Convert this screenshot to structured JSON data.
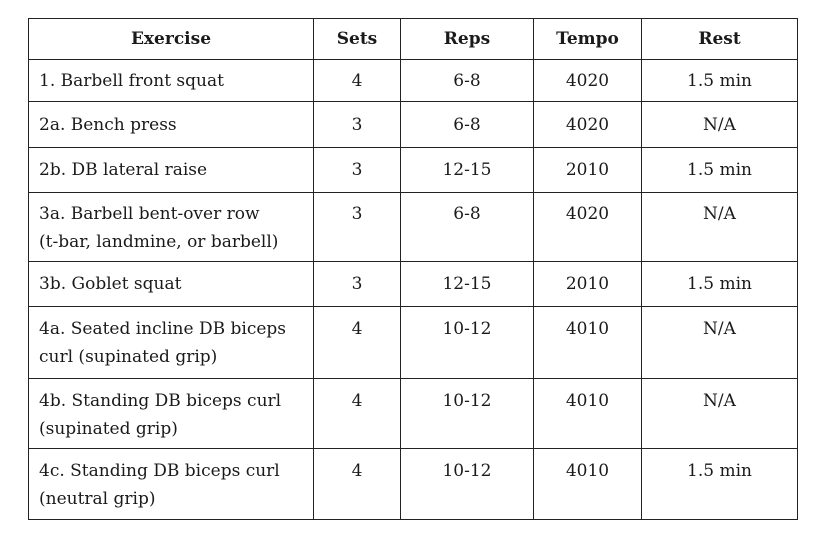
{
  "table": {
    "headers": [
      "Exercise",
      "Sets",
      "Reps",
      "Tempo",
      "Rest"
    ],
    "rows": [
      {
        "exercise": [
          "1. Barbell front squat"
        ],
        "sets": "4",
        "reps": "6-8",
        "tempo": "4020",
        "rest": "1.5 min"
      },
      {
        "exercise": [
          "2a. Bench press"
        ],
        "sets": "3",
        "reps": "6-8",
        "tempo": "4020",
        "rest": "N/A"
      },
      {
        "exercise": [
          "2b. DB lateral raise"
        ],
        "sets": "3",
        "reps": "12-15",
        "tempo": "2010",
        "rest": "1.5 min"
      },
      {
        "exercise": [
          "3a. Barbell bent-over row",
          "(t-bar, landmine, or barbell)"
        ],
        "sets": "3",
        "reps": "6-8",
        "tempo": "4020",
        "rest": "N/A"
      },
      {
        "exercise": [
          "3b. Goblet squat"
        ],
        "sets": "3",
        "reps": "12-15",
        "tempo": "2010",
        "rest": "1.5 min"
      },
      {
        "exercise": [
          "4a. Seated incline DB biceps",
          "curl (supinated grip)"
        ],
        "sets": "4",
        "reps": "10-12",
        "tempo": "4010",
        "rest": "N/A"
      },
      {
        "exercise": [
          "4b. Standing DB biceps curl",
          "(supinated grip)"
        ],
        "sets": "4",
        "reps": "10-12",
        "tempo": "4010",
        "rest": "N/A"
      },
      {
        "exercise": [
          "4c. Standing DB biceps curl",
          "(neutral grip)"
        ],
        "sets": "4",
        "reps": "10-12",
        "tempo": "4010",
        "rest": "1.5 min"
      }
    ]
  }
}
